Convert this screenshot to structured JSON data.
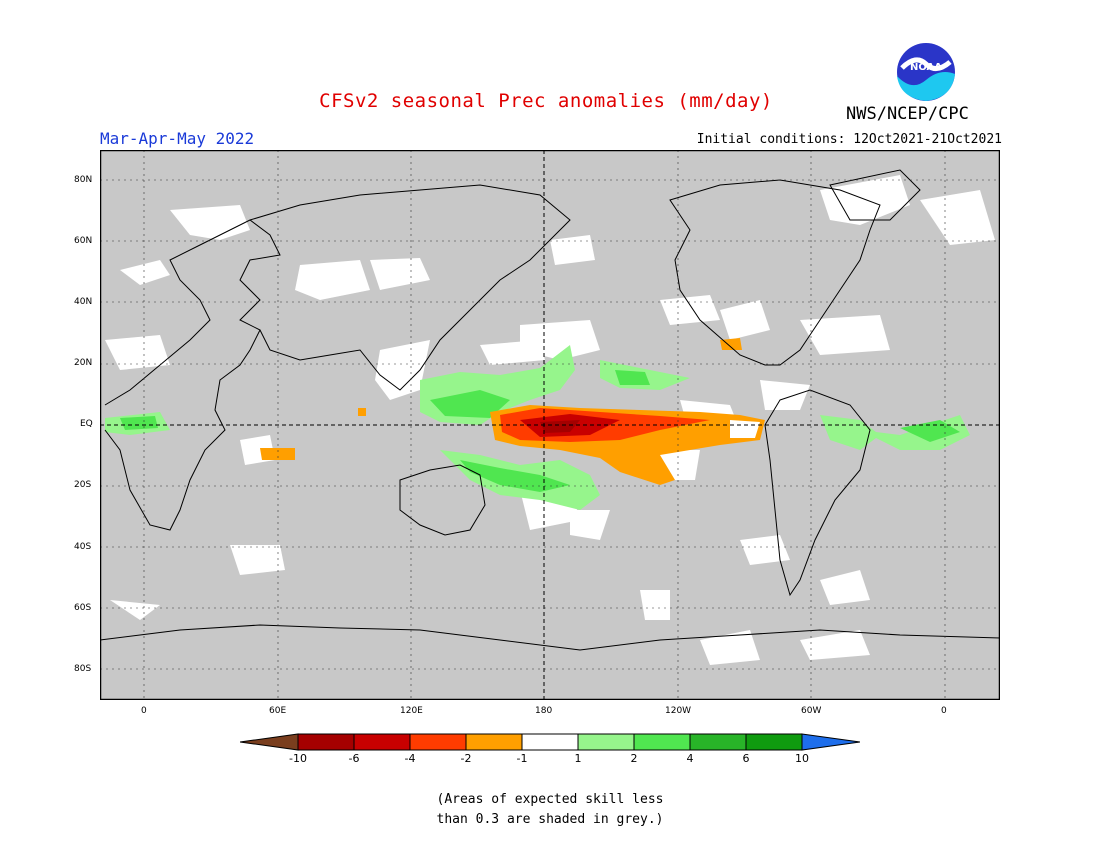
{
  "title": "CFSv2 seasonal Prec anomalies (mm/day)",
  "season": "Mar-Apr-May 2022",
  "initial_conditions": "Initial conditions: 12Oct2021-21Oct2021",
  "agency": "NWS/NCEP/CPC",
  "logo_text": "NOAA",
  "lat_labels": [
    "80N",
    "60N",
    "40N",
    "20N",
    "EQ",
    "20S",
    "40S",
    "60S",
    "80S"
  ],
  "lon_labels": [
    "0",
    "60E",
    "120E",
    "180",
    "120W",
    "60W",
    "0"
  ],
  "legend": {
    "labels": [
      "-10",
      "-6",
      "-4",
      "-2",
      "-1",
      "1",
      "2",
      "4",
      "6",
      "10"
    ],
    "colors": [
      "#7a3e1e",
      "#a50000",
      "#c80000",
      "#ff3c00",
      "#ff9f00",
      "#ffffff",
      "#96f58c",
      "#50e650",
      "#28b428",
      "#0f9b0f",
      "#1e6eeb"
    ]
  },
  "note_line1": "(Areas of expected skill less",
  "note_line2": "than 0.3 are shaded in grey.)",
  "colors": {
    "title": "#e00000",
    "season": "#1a3ad8",
    "map_bg": "#c8c8c8"
  }
}
